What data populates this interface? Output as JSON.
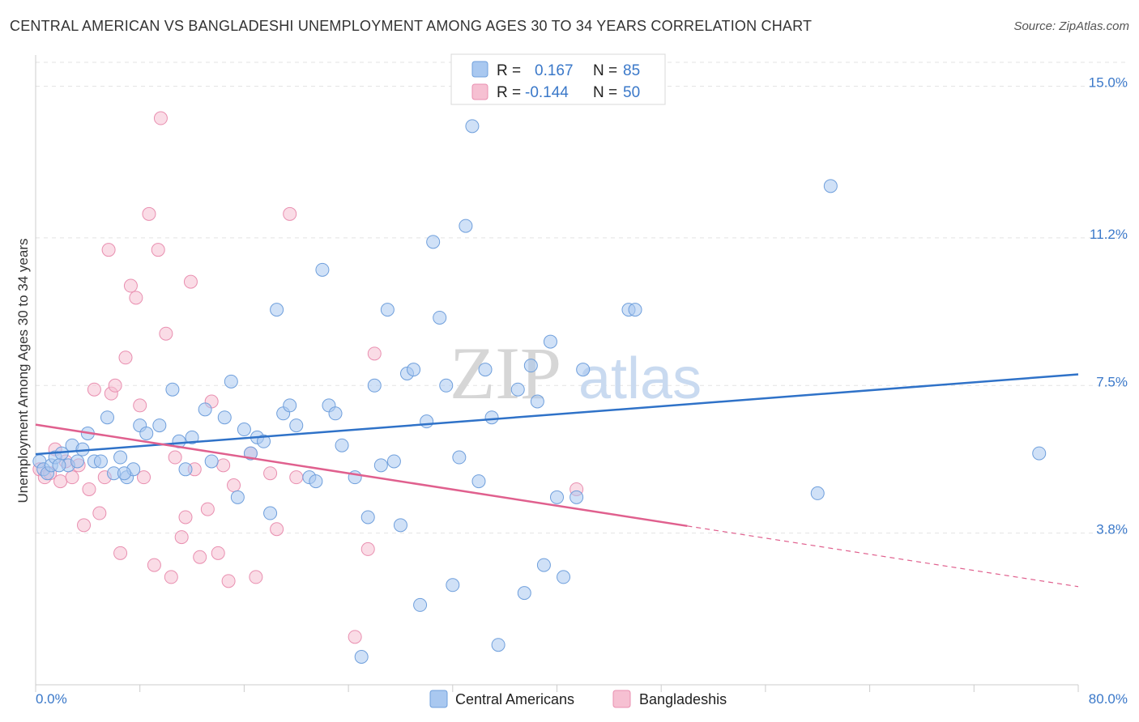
{
  "header": {
    "title": "CENTRAL AMERICAN VS BANGLADESHI UNEMPLOYMENT AMONG AGES 30 TO 34 YEARS CORRELATION CHART",
    "source": "Source: ZipAtlas.com"
  },
  "watermark": {
    "zip": "ZIP",
    "atlas": "atlas"
  },
  "colors": {
    "blue_fill": "#a9c8f0",
    "blue_stroke": "#6f9fdc",
    "blue_line": "#2f72c8",
    "pink_fill": "#f6c0d2",
    "pink_stroke": "#e98fb0",
    "pink_line": "#e0608e",
    "grid": "#e3e3e3",
    "axis_label": "#3a78c9"
  },
  "legend": {
    "rows": [
      {
        "r_label": "R =",
        "r_value": "0.167",
        "n_label": "N =",
        "n_value": "85"
      },
      {
        "r_label": "R =",
        "r_value": "-0.144",
        "n_label": "N =",
        "n_value": "50"
      }
    ]
  },
  "bottom_legend": {
    "series1": "Central Americans",
    "series2": "Bangladeshis"
  },
  "chart_data": {
    "type": "scatter",
    "ylabel": "Unemployment Among Ages 30 to 34 years",
    "xlim": [
      0,
      80
    ],
    "ylim": [
      0,
      15.6
    ],
    "x_tick_labels": [
      "0.0%",
      "80.0%"
    ],
    "y_ticks": [
      3.8,
      7.5,
      11.2,
      15.0
    ],
    "y_tick_labels": [
      "3.8%",
      "7.5%",
      "11.2%",
      "15.0%"
    ],
    "grid": true,
    "legend_position": "top-center",
    "series": [
      {
        "name": "Central Americans",
        "r": 0.167,
        "n": 85,
        "trend": {
          "x0": 0,
          "y0": 5.78,
          "x1": 80,
          "y1": 7.78
        },
        "points": [
          [
            0.3,
            5.6
          ],
          [
            0.6,
            5.4
          ],
          [
            0.9,
            5.3
          ],
          [
            1.2,
            5.5
          ],
          [
            1.5,
            5.7
          ],
          [
            2.0,
            5.8
          ],
          [
            2.5,
            5.5
          ],
          [
            2.8,
            6.0
          ],
          [
            3.2,
            5.6
          ],
          [
            3.6,
            5.9
          ],
          [
            4.0,
            6.3
          ],
          [
            4.5,
            5.6
          ],
          [
            5.0,
            5.6
          ],
          [
            5.5,
            6.7
          ],
          [
            6.0,
            5.3
          ],
          [
            6.5,
            5.7
          ],
          [
            7.0,
            5.2
          ],
          [
            7.5,
            5.4
          ],
          [
            8.0,
            6.5
          ],
          [
            8.5,
            6.3
          ],
          [
            9.5,
            6.5
          ],
          [
            10.5,
            7.4
          ],
          [
            11.0,
            6.1
          ],
          [
            11.5,
            5.4
          ],
          [
            12.0,
            6.2
          ],
          [
            13.0,
            6.9
          ],
          [
            13.5,
            5.6
          ],
          [
            14.5,
            6.7
          ],
          [
            15.0,
            7.6
          ],
          [
            15.5,
            4.7
          ],
          [
            16.0,
            6.4
          ],
          [
            16.5,
            5.8
          ],
          [
            17.0,
            6.2
          ],
          [
            17.5,
            6.1
          ],
          [
            18.0,
            4.3
          ],
          [
            18.5,
            9.4
          ],
          [
            19.0,
            6.8
          ],
          [
            19.5,
            7.0
          ],
          [
            20.0,
            6.5
          ],
          [
            21.0,
            5.2
          ],
          [
            21.5,
            5.1
          ],
          [
            22.0,
            10.4
          ],
          [
            22.5,
            7.0
          ],
          [
            23.0,
            6.8
          ],
          [
            23.5,
            6.0
          ],
          [
            24.5,
            5.2
          ],
          [
            25.0,
            0.7
          ],
          [
            25.5,
            4.2
          ],
          [
            26.0,
            7.5
          ],
          [
            26.5,
            5.5
          ],
          [
            27.0,
            9.4
          ],
          [
            27.5,
            5.6
          ],
          [
            28.0,
            4.0
          ],
          [
            28.5,
            7.8
          ],
          [
            29.0,
            7.9
          ],
          [
            29.5,
            2.0
          ],
          [
            30.0,
            6.6
          ],
          [
            30.5,
            11.1
          ],
          [
            31.0,
            9.2
          ],
          [
            31.5,
            7.5
          ],
          [
            32.0,
            2.5
          ],
          [
            32.5,
            5.7
          ],
          [
            33.0,
            11.5
          ],
          [
            33.5,
            14.0
          ],
          [
            34.0,
            5.1
          ],
          [
            34.5,
            7.9
          ],
          [
            35.0,
            6.7
          ],
          [
            35.5,
            1.0
          ],
          [
            37.0,
            7.4
          ],
          [
            37.5,
            2.3
          ],
          [
            38.0,
            8.0
          ],
          [
            38.5,
            7.1
          ],
          [
            39.0,
            3.0
          ],
          [
            39.5,
            8.6
          ],
          [
            40.0,
            4.7
          ],
          [
            40.5,
            2.7
          ],
          [
            41.5,
            4.7
          ],
          [
            42.0,
            7.9
          ],
          [
            45.5,
            9.4
          ],
          [
            46.0,
            9.4
          ],
          [
            60.0,
            4.8
          ],
          [
            61.0,
            12.5
          ],
          [
            77.0,
            5.8
          ],
          [
            1.8,
            5.5
          ],
          [
            6.8,
            5.3
          ]
        ]
      },
      {
        "name": "Bangladeshis",
        "r": -0.144,
        "n": 50,
        "trend": {
          "x0": 0,
          "y0": 6.52,
          "x1": 50,
          "y1": 3.98,
          "dash_to_x": 80,
          "dash_to_y": 2.46
        },
        "points": [
          [
            0.3,
            5.4
          ],
          [
            0.7,
            5.2
          ],
          [
            1.1,
            5.3
          ],
          [
            1.5,
            5.9
          ],
          [
            1.9,
            5.1
          ],
          [
            2.3,
            5.6
          ],
          [
            2.8,
            5.2
          ],
          [
            3.3,
            5.5
          ],
          [
            3.7,
            4.0
          ],
          [
            4.1,
            4.9
          ],
          [
            4.5,
            7.4
          ],
          [
            4.9,
            4.3
          ],
          [
            5.3,
            5.2
          ],
          [
            5.6,
            10.9
          ],
          [
            5.8,
            7.3
          ],
          [
            6.1,
            7.5
          ],
          [
            6.5,
            3.3
          ],
          [
            6.9,
            8.2
          ],
          [
            7.3,
            10.0
          ],
          [
            7.7,
            9.7
          ],
          [
            8.0,
            7.0
          ],
          [
            8.3,
            5.2
          ],
          [
            8.7,
            11.8
          ],
          [
            9.1,
            3.0
          ],
          [
            9.4,
            10.9
          ],
          [
            9.6,
            14.2
          ],
          [
            10.0,
            8.8
          ],
          [
            10.4,
            2.7
          ],
          [
            10.7,
            5.7
          ],
          [
            11.2,
            3.7
          ],
          [
            11.5,
            4.2
          ],
          [
            11.9,
            10.1
          ],
          [
            12.2,
            5.4
          ],
          [
            12.6,
            3.2
          ],
          [
            13.2,
            4.4
          ],
          [
            13.5,
            7.1
          ],
          [
            14.0,
            3.3
          ],
          [
            14.4,
            5.5
          ],
          [
            14.8,
            2.6
          ],
          [
            15.2,
            5.0
          ],
          [
            16.5,
            5.8
          ],
          [
            16.9,
            2.7
          ],
          [
            18.0,
            5.3
          ],
          [
            18.5,
            3.9
          ],
          [
            19.5,
            11.8
          ],
          [
            20.0,
            5.2
          ],
          [
            24.5,
            1.2
          ],
          [
            25.5,
            3.4
          ],
          [
            26.0,
            8.3
          ],
          [
            41.5,
            4.9
          ]
        ]
      }
    ]
  }
}
